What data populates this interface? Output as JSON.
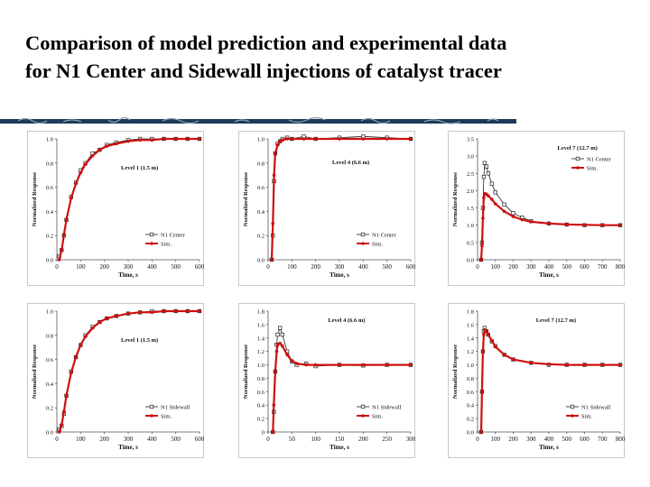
{
  "title_line1": "Comparison of model prediction and experimental data",
  "title_line2": "for N1 Center and Sidewall injections of catalyst tracer",
  "colors": {
    "data": "#222222",
    "sim": "#cc1111",
    "panel_border": "#c8c8c8"
  },
  "chart_data": [
    {
      "type": "line",
      "title": "Level 1 (1.5 m)",
      "xlabel": "Time, s",
      "ylabel": "Normalized Response",
      "xlim": [
        0,
        600
      ],
      "ylim": [
        0,
        1.0
      ],
      "xticks": [
        0,
        100,
        200,
        300,
        400,
        500,
        600
      ],
      "yticks": [
        0.0,
        0.2,
        0.4,
        0.6,
        0.8,
        1.0
      ],
      "ytick_labels": [
        "0.0",
        "0.2",
        "0.4",
        "0.6",
        "0.8",
        "1.0"
      ],
      "legend": [
        "N1 Center",
        "Sim."
      ],
      "legend_position": "bottom-right",
      "series": [
        {
          "name": "N1 Center",
          "x": [
            10,
            20,
            30,
            40,
            60,
            80,
            100,
            120,
            150,
            180,
            210,
            250,
            300,
            350,
            400,
            450,
            500,
            550,
            600
          ],
          "values": [
            0.03,
            0.08,
            0.2,
            0.33,
            0.52,
            0.64,
            0.74,
            0.8,
            0.88,
            0.91,
            0.95,
            0.97,
            0.99,
            1.0,
            1.0,
            1.0,
            1.0,
            1.0,
            1.0
          ]
        },
        {
          "name": "Sim.",
          "x": [
            10,
            20,
            30,
            40,
            60,
            80,
            100,
            120,
            150,
            180,
            210,
            250,
            300,
            350,
            400,
            450,
            500,
            550,
            600
          ],
          "values": [
            0.0,
            0.08,
            0.21,
            0.33,
            0.51,
            0.63,
            0.72,
            0.79,
            0.86,
            0.91,
            0.94,
            0.96,
            0.98,
            0.99,
            0.99,
            1.0,
            1.0,
            1.0,
            1.0
          ]
        }
      ]
    },
    {
      "type": "line",
      "title": "Level 4 (6.6 m)",
      "xlabel": "Time, s",
      "ylabel": "Normalized Response",
      "xlim": [
        0,
        600
      ],
      "ylim": [
        0,
        1.0
      ],
      "xticks": [
        0,
        100,
        200,
        300,
        400,
        500,
        600
      ],
      "yticks": [
        0.0,
        0.2,
        0.4,
        0.6,
        0.8,
        1.0
      ],
      "ytick_labels": [
        "0.0",
        "0.2",
        "0.4",
        "0.6",
        "0.8",
        "1.0"
      ],
      "legend": [
        "N1 Center",
        "Sim."
      ],
      "legend_position": "bottom-right",
      "series": [
        {
          "name": "N1 Center",
          "x": [
            15,
            20,
            25,
            30,
            40,
            50,
            60,
            80,
            100,
            150,
            200,
            300,
            400,
            500,
            600
          ],
          "values": [
            0.0,
            0.2,
            0.65,
            0.88,
            0.96,
            0.98,
            1.0,
            1.01,
            1.0,
            1.02,
            1.0,
            1.01,
            1.02,
            1.01,
            1.0
          ]
        },
        {
          "name": "Sim.",
          "x": [
            15,
            20,
            25,
            30,
            40,
            50,
            60,
            80,
            100,
            150,
            200,
            300,
            400,
            500,
            600
          ],
          "values": [
            0.0,
            0.3,
            0.7,
            0.88,
            0.95,
            0.98,
            0.99,
            1.0,
            1.0,
            1.0,
            1.0,
            1.0,
            1.0,
            1.0,
            1.0
          ]
        }
      ]
    },
    {
      "type": "line",
      "title": "Level 7 (12.7 m)",
      "xlabel": "Time, s",
      "ylabel": "Normalized Response",
      "xlim": [
        0,
        800
      ],
      "ylim": [
        0,
        3.5
      ],
      "xticks": [
        0,
        100,
        200,
        300,
        400,
        500,
        600,
        700,
        800
      ],
      "yticks": [
        0.0,
        0.5,
        1.0,
        1.5,
        2.0,
        2.5,
        3.0,
        3.5
      ],
      "ytick_labels": [
        "0.0",
        "0.5",
        "1.0",
        "1.5",
        "2.0",
        "2.5",
        "3.0",
        "3.5"
      ],
      "legend": [
        "N1 Center",
        "Sim."
      ],
      "legend_position": "top-right",
      "series": [
        {
          "name": "N1 Center",
          "x": [
            20,
            25,
            30,
            35,
            40,
            50,
            60,
            80,
            100,
            150,
            200,
            250,
            300,
            400,
            500,
            600,
            700,
            800
          ],
          "values": [
            0.0,
            0.5,
            1.5,
            2.4,
            2.8,
            2.7,
            2.5,
            2.2,
            1.95,
            1.6,
            1.35,
            1.22,
            1.12,
            1.05,
            1.02,
            1.0,
            1.0,
            1.0
          ]
        },
        {
          "name": "Sim.",
          "x": [
            20,
            25,
            30,
            35,
            40,
            50,
            60,
            80,
            100,
            150,
            200,
            250,
            300,
            400,
            500,
            600,
            700,
            800
          ],
          "values": [
            0.0,
            0.4,
            1.2,
            1.8,
            1.92,
            1.9,
            1.85,
            1.75,
            1.62,
            1.4,
            1.25,
            1.16,
            1.1,
            1.05,
            1.02,
            1.01,
            1.0,
            1.0
          ]
        }
      ]
    },
    {
      "type": "line",
      "title": "Level 1 (1.5 m)",
      "xlabel": "Time, s",
      "ylabel": "Normalized Response",
      "xlim": [
        0,
        600
      ],
      "ylim": [
        0,
        1.0
      ],
      "xticks": [
        0,
        100,
        200,
        300,
        400,
        500,
        600
      ],
      "yticks": [
        0.0,
        0.2,
        0.4,
        0.6,
        0.8,
        1.0
      ],
      "ytick_labels": [
        "0.0",
        "0.2",
        "0.4",
        "0.6",
        "0.8",
        "1.0"
      ],
      "legend": [
        "N1 Sidewall",
        "Sim."
      ],
      "legend_position": "bottom-right",
      "series": [
        {
          "name": "N1 Sidewall",
          "x": [
            10,
            20,
            30,
            40,
            60,
            80,
            100,
            120,
            150,
            180,
            210,
            250,
            300,
            350,
            400,
            450,
            500,
            550,
            600
          ],
          "values": [
            0.02,
            0.05,
            0.15,
            0.3,
            0.5,
            0.62,
            0.72,
            0.8,
            0.87,
            0.91,
            0.94,
            0.96,
            0.98,
            0.99,
            1.0,
            1.0,
            1.0,
            1.0,
            1.0
          ]
        },
        {
          "name": "Sim.",
          "x": [
            10,
            20,
            30,
            40,
            60,
            80,
            100,
            120,
            150,
            180,
            210,
            250,
            300,
            350,
            400,
            450,
            500,
            550,
            600
          ],
          "values": [
            0.0,
            0.06,
            0.17,
            0.3,
            0.49,
            0.62,
            0.72,
            0.79,
            0.86,
            0.91,
            0.94,
            0.96,
            0.98,
            0.99,
            0.99,
            1.0,
            1.0,
            1.0,
            1.0
          ]
        }
      ]
    },
    {
      "type": "line",
      "title": "Level 4 (6.6 m)",
      "xlabel": "Time, s",
      "ylabel": "Normalized Response",
      "xlim": [
        0,
        300
      ],
      "ylim": [
        0,
        1.8
      ],
      "xticks": [
        0,
        50,
        100,
        150,
        200,
        250,
        300
      ],
      "yticks": [
        0.0,
        0.2,
        0.4,
        0.6,
        0.8,
        1.0,
        1.2,
        1.4,
        1.6,
        1.8
      ],
      "ytick_labels": [
        "0",
        "0.2",
        "0.4",
        "0.6",
        "0.8",
        "1.0",
        "1.2",
        "1.4",
        "1.6",
        "1.8"
      ],
      "legend": [
        "N1 Sidewall",
        "Sim."
      ],
      "legend_position": "bottom-right",
      "series": [
        {
          "name": "N1 Sidewall",
          "x": [
            10,
            12,
            15,
            18,
            20,
            25,
            30,
            40,
            50,
            60,
            80,
            100,
            150,
            200,
            250,
            300
          ],
          "values": [
            0.0,
            0.3,
            0.9,
            1.3,
            1.45,
            1.55,
            1.45,
            1.2,
            1.05,
            1.0,
            1.02,
            0.98,
            1.0,
            0.99,
            1.0,
            1.0
          ]
        },
        {
          "name": "Sim.",
          "x": [
            10,
            12,
            15,
            18,
            20,
            25,
            30,
            40,
            50,
            60,
            80,
            100,
            150,
            200,
            250,
            300
          ],
          "values": [
            0.0,
            0.4,
            0.9,
            1.2,
            1.3,
            1.32,
            1.28,
            1.15,
            1.06,
            1.02,
            1.0,
            1.0,
            1.0,
            1.0,
            1.0,
            1.0
          ]
        }
      ]
    },
    {
      "type": "line",
      "title": "Level 7 (12.7 m)",
      "xlabel": "Time, s",
      "ylabel": "Normalized Response",
      "xlim": [
        0,
        800
      ],
      "ylim": [
        0,
        1.8
      ],
      "xticks": [
        0,
        100,
        200,
        300,
        400,
        500,
        600,
        700,
        800
      ],
      "yticks": [
        0.0,
        0.2,
        0.4,
        0.6,
        0.8,
        1.0,
        1.2,
        1.4,
        1.6,
        1.8
      ],
      "ytick_labels": [
        "0.0",
        "0.2",
        "0.4",
        "0.6",
        "0.8",
        "1.0",
        "1.2",
        "1.4",
        "1.6",
        "1.8"
      ],
      "legend": [
        "N1 Sidewall",
        "Sim."
      ],
      "legend_position": "bottom-right",
      "series": [
        {
          "name": "N1 Sidewall",
          "x": [
            20,
            25,
            30,
            35,
            40,
            50,
            60,
            80,
            100,
            150,
            200,
            300,
            400,
            500,
            600,
            700,
            800
          ],
          "values": [
            0.0,
            0.6,
            1.2,
            1.5,
            1.55,
            1.5,
            1.45,
            1.35,
            1.28,
            1.15,
            1.08,
            1.03,
            1.0,
            1.0,
            1.0,
            1.0,
            1.0
          ]
        },
        {
          "name": "Sim.",
          "x": [
            20,
            25,
            30,
            35,
            40,
            50,
            60,
            80,
            100,
            150,
            200,
            300,
            400,
            500,
            600,
            700,
            800
          ],
          "values": [
            0.0,
            0.6,
            1.2,
            1.45,
            1.52,
            1.5,
            1.45,
            1.36,
            1.27,
            1.15,
            1.08,
            1.03,
            1.01,
            1.0,
            1.0,
            1.0,
            1.0
          ]
        }
      ]
    }
  ]
}
